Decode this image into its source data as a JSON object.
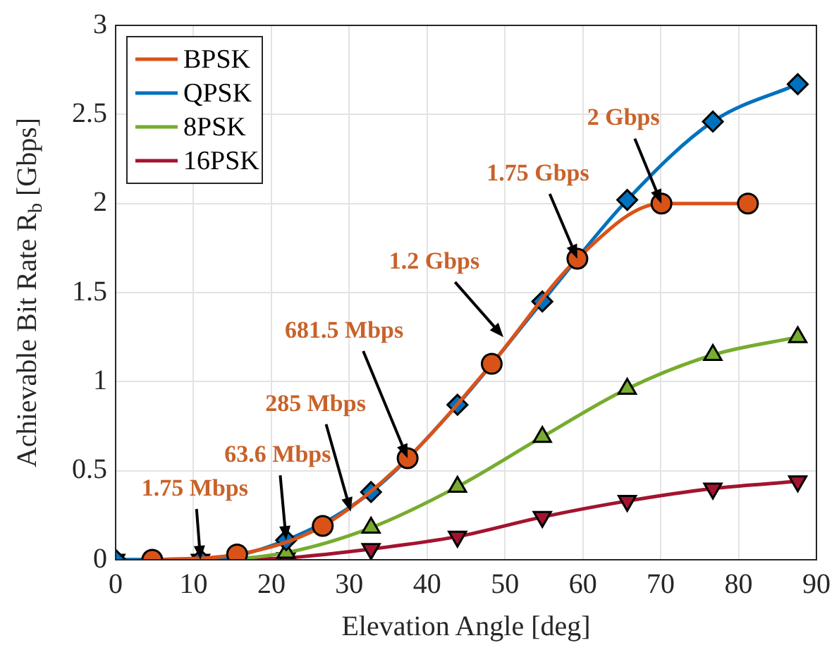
{
  "chart_data": {
    "type": "line",
    "xlabel": "Elevation Angle [deg]",
    "ylabel": "Achievable Bit Rate R$_{b}$ [Gbps]",
    "xlim": [
      0,
      90
    ],
    "xticks": [
      0,
      10,
      20,
      30,
      40,
      50,
      60,
      70,
      80,
      90
    ],
    "ylim": [
      0,
      3
    ],
    "yticks": [
      0,
      0.5,
      1,
      1.5,
      2,
      2.5,
      3
    ],
    "grid": true,
    "legend": "top left",
    "line_style": "solid",
    "series": [
      {
        "name": "BPSK",
        "color": "#d95319",
        "marker": "circle",
        "x": [
          4.7,
          15.6,
          26.6,
          37.5,
          48.3,
          59.3,
          70.1,
          81.2
        ],
        "values": [
          0,
          0.03,
          0.19,
          0.57,
          1.1,
          1.69,
          2,
          2
        ]
      },
      {
        "name": "QPSK",
        "color": "#0072bd",
        "marker": "diamond",
        "x": [
          0,
          10.9,
          21.9,
          32.8,
          43.9,
          54.8,
          65.7,
          76.7,
          87.6
        ],
        "values": [
          0,
          0,
          0.11,
          0.38,
          0.87,
          1.45,
          2.02,
          2.46,
          2.67
        ]
      },
      {
        "name": "8PSK",
        "color": "#77ac30",
        "marker": "triangle",
        "x": [
          0,
          10.9,
          21.9,
          32.8,
          43.9,
          54.8,
          65.7,
          76.7,
          87.6
        ],
        "values": [
          0,
          0,
          0.04,
          0.18,
          0.41,
          0.69,
          0.96,
          1.15,
          1.25
        ]
      },
      {
        "name": "16PSK",
        "color": "#a2142f",
        "marker": "triangle-down",
        "x": [
          0,
          10.9,
          21.9,
          32.8,
          43.9,
          54.8,
          65.7,
          76.7,
          87.6
        ],
        "values": [
          0,
          0,
          0.01,
          0.06,
          0.13,
          0.24,
          0.33,
          0.4,
          0.44
        ]
      }
    ],
    "annotations": [
      {
        "text": "1.75 Mbps",
        "x": 10.9,
        "y": 0
      },
      {
        "text": "63.6 Mbps",
        "x": 21.9,
        "y": 0.11
      },
      {
        "text": "285 Mbps",
        "x": 30.2,
        "y": 0.27
      },
      {
        "text": "681.5 Mbps",
        "x": 37.5,
        "y": 0.57
      },
      {
        "text": "1.2 Gbps",
        "x": 49.8,
        "y": 1.25
      },
      {
        "text": "1.75 Gbps",
        "x": 59.3,
        "y": 1.69
      },
      {
        "text": "2 Gbps",
        "x": 70.1,
        "y": 2
      }
    ]
  }
}
